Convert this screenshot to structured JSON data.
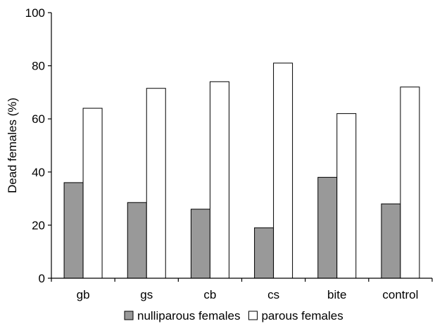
{
  "chart_data": {
    "type": "bar",
    "categories": [
      "gb",
      "gs",
      "cb",
      "cs",
      "bite",
      "control"
    ],
    "series": [
      {
        "name": "nulliparous females",
        "values": [
          36,
          28.5,
          26,
          19,
          38,
          28
        ],
        "color": "#999999"
      },
      {
        "name": "parous females",
        "values": [
          64,
          71.5,
          74,
          81,
          62,
          72
        ],
        "color": "#ffffff"
      }
    ],
    "ylabel": "Dead females (%)",
    "ylim": [
      0,
      100
    ],
    "yticks": [
      0,
      20,
      40,
      60,
      80,
      100
    ],
    "grid": false,
    "legend": "bottom"
  }
}
